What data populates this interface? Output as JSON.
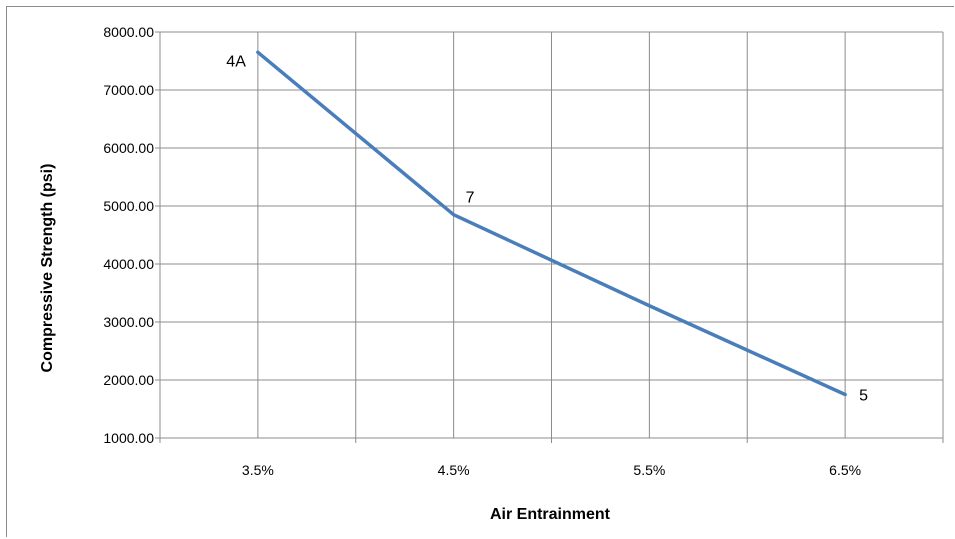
{
  "chart_data": {
    "type": "line",
    "categories": [
      "3.5%",
      "4.5%",
      "5.5%",
      "6.5%"
    ],
    "x": [
      3.5,
      4.5,
      5.5,
      6.5
    ],
    "series": [
      {
        "values": [
          7650,
          4850,
          3280,
          1750
        ],
        "color": "#4a7ebb",
        "point_labels": [
          "4A",
          "7",
          "",
          "5"
        ]
      }
    ],
    "title": "",
    "xlabel": "Air Entrainment",
    "ylabel": "Compressive Strength (psi)",
    "ylim": [
      1000,
      8000
    ],
    "yticks": [
      "1000.00",
      "2000.00",
      "3000.00",
      "4000.00",
      "5000.00",
      "6000.00",
      "7000.00",
      "8000.00"
    ],
    "grid": true,
    "legend": "none"
  }
}
